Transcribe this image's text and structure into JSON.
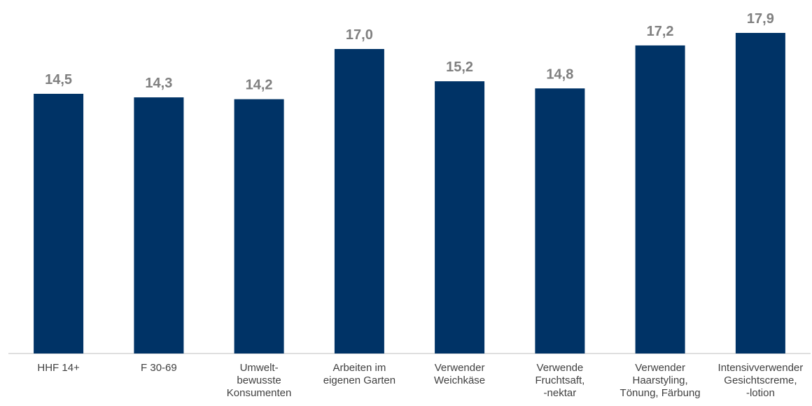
{
  "colors": {
    "bar": "#003366",
    "value_label": "#7f7f7f",
    "axis": "#bfbfbf",
    "category_label": "#404040"
  },
  "chart_data": {
    "type": "bar",
    "title": "",
    "xlabel": "",
    "ylabel": "",
    "ylim": [
      0,
      19
    ],
    "grid": false,
    "legend": "none",
    "categories": [
      "HHF 14+",
      "F 30-69",
      "Umwelt-\nbewusste\nKonsumenten",
      "Arbeiten im\neigenen Garten",
      "Verwender\nWeichkäse",
      "Verwende\nFruchtsaft,\n-nektar",
      "Verwender\nHaarstyling,\nTönung, Färbung",
      "Intensivverwender\nGesichtscreme,\n-lotion"
    ],
    "values": [
      14.5,
      14.3,
      14.2,
      17.0,
      15.2,
      14.8,
      17.2,
      17.9
    ],
    "value_labels": [
      "14,5",
      "14,3",
      "14,2",
      "17,0",
      "15,2",
      "14,8",
      "17,2",
      "17,9"
    ]
  }
}
